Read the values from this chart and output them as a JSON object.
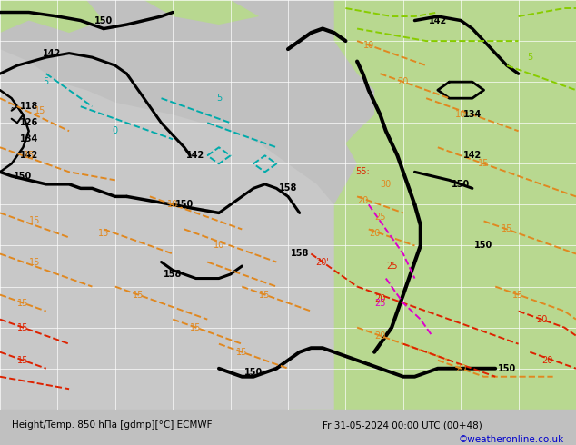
{
  "figwidth": 6.34,
  "figheight": 4.9,
  "dpi": 100,
  "bg_color": "#c8c8c8",
  "ocean_color": "#b8b8c8",
  "land_green_color": "#b8d890",
  "land_light_color": "#d8d8d8",
  "grid_color": "#ffffff",
  "contour_black": "#000000",
  "contour_orange": "#e08820",
  "contour_red": "#dd2200",
  "contour_magenta": "#dd00cc",
  "contour_cyan": "#00aaaa",
  "contour_yellow_green": "#88cc00",
  "watermark_color": "#0000cc",
  "bottom_text_color": "#000000",
  "bottom_label": "Height/Temp. 850 hΠa [gdmp][°C] ECMWF",
  "bottom_date": "Fr 31-05-2024 00:00 UTC (00+48)",
  "watermark_text": "©weatheronline.co.uk"
}
